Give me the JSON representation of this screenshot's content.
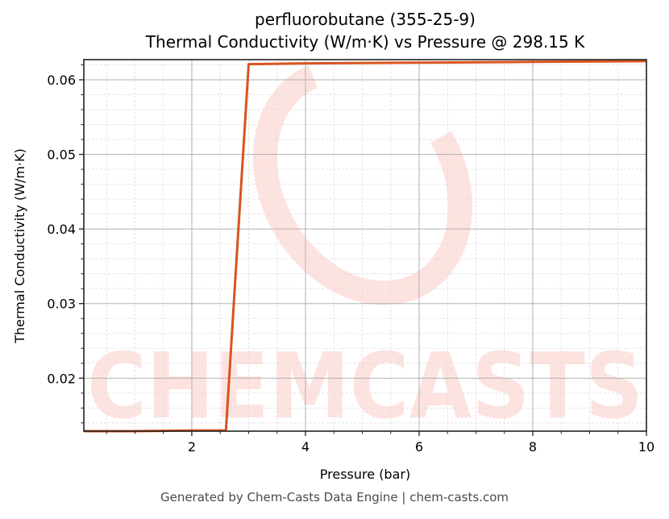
{
  "chart_title": {
    "line1": "perfluorobutane (355-25-9)",
    "line2": "Thermal Conductivity (W/m·K) vs Pressure @ 298.15 K"
  },
  "footer": "Generated by Chem-Casts Data Engine | chem-casts.com",
  "watermark": "CHEMCASTS",
  "colors": {
    "line": "#d9531e",
    "watermark": "#fde3e0",
    "major_grid": "#b0b0b0",
    "minor_grid": "#dddddd",
    "axes": "#222222"
  },
  "chart_data": {
    "type": "line",
    "title": "perfluorobutane (355-25-9)\nThermal Conductivity (W/m·K) vs Pressure @ 298.15 K",
    "xlabel": "Pressure (bar)",
    "ylabel": "Thermal Conductivity (W/m·K)",
    "xlim": [
      0.1,
      10
    ],
    "ylim": [
      0.0129,
      0.0627
    ],
    "xticks": [
      2,
      4,
      6,
      8,
      10
    ],
    "xtick_labels": [
      "2",
      "4",
      "6",
      "8",
      "10"
    ],
    "yticks": [
      0.02,
      0.03,
      0.04,
      0.05,
      0.06
    ],
    "ytick_labels": [
      "0.02",
      "0.03",
      "0.04",
      "0.05",
      "0.06"
    ],
    "grid": true,
    "minor_grid": true,
    "legend": null,
    "series": [
      {
        "name": "Thermal Conductivity",
        "x": [
          0.1,
          1.0,
          2.0,
          2.6,
          3.0,
          4.0,
          6.0,
          8.0,
          10.0
        ],
        "values": [
          0.0129,
          0.0129,
          0.013,
          0.013,
          0.0621,
          0.0622,
          0.0623,
          0.0624,
          0.0625
        ]
      }
    ]
  }
}
